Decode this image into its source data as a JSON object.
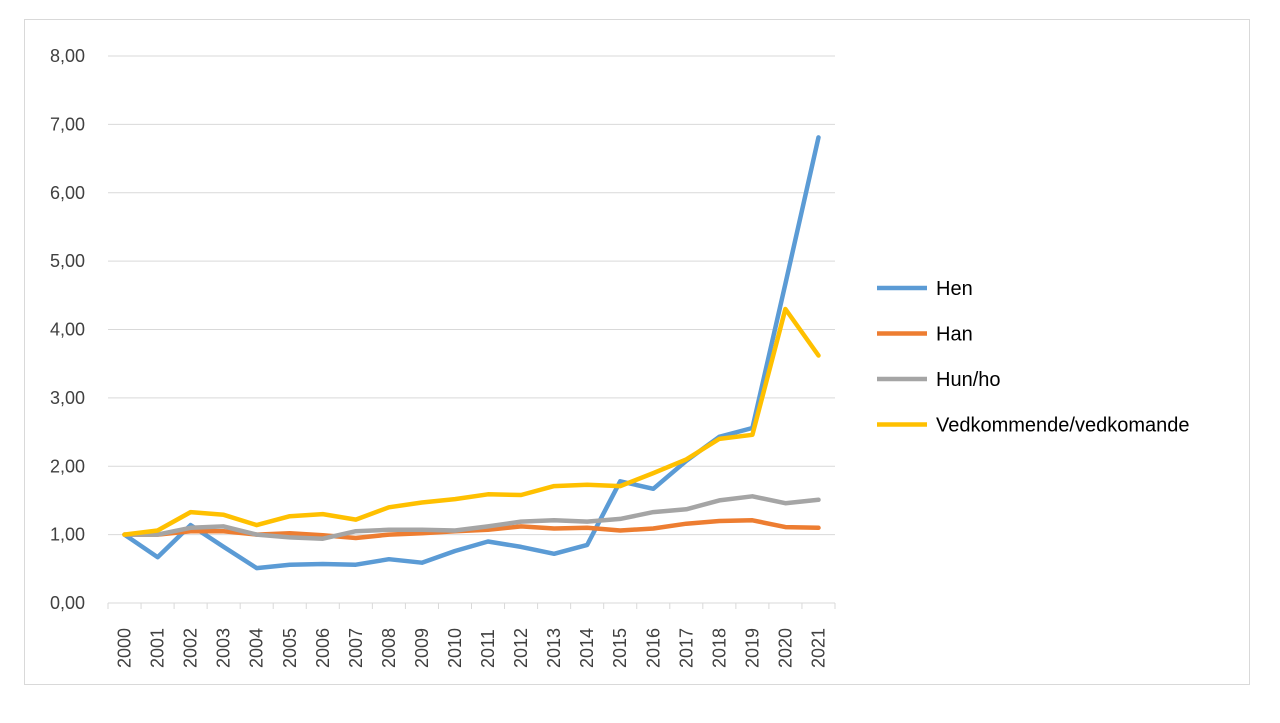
{
  "chart_data": {
    "type": "line",
    "title": "",
    "xlabel": "",
    "ylabel": "",
    "categories": [
      "2000",
      "2001",
      "2002",
      "2003",
      "2004",
      "2005",
      "2006",
      "2007",
      "2008",
      "2009",
      "2010",
      "2011",
      "2012",
      "2013",
      "2014",
      "2015",
      "2016",
      "2017",
      "2018",
      "2019",
      "2020",
      "2021"
    ],
    "y_ticks": [
      "0,00",
      "1,00",
      "2,00",
      "3,00",
      "4,00",
      "5,00",
      "6,00",
      "7,00",
      "8,00"
    ],
    "ylim": [
      0,
      8
    ],
    "grid": true,
    "legend_position": "right",
    "series": [
      {
        "name": "Hen",
        "color": "#5B9BD5",
        "values": [
          1.0,
          0.67,
          1.14,
          0.82,
          0.51,
          0.56,
          0.57,
          0.56,
          0.64,
          0.59,
          0.76,
          0.9,
          0.82,
          0.72,
          0.85,
          1.78,
          1.67,
          2.08,
          2.43,
          2.56,
          4.67,
          6.81
        ]
      },
      {
        "name": "Han",
        "color": "#ED7D31",
        "values": [
          1.0,
          1.0,
          1.05,
          1.05,
          1.0,
          1.02,
          0.99,
          0.95,
          1.0,
          1.02,
          1.05,
          1.07,
          1.12,
          1.09,
          1.1,
          1.06,
          1.09,
          1.16,
          1.2,
          1.21,
          1.11,
          1.1
        ]
      },
      {
        "name": "Hun/ho",
        "color": "#A5A5A5",
        "values": [
          1.0,
          1.0,
          1.1,
          1.12,
          1.0,
          0.96,
          0.94,
          1.05,
          1.07,
          1.07,
          1.06,
          1.12,
          1.19,
          1.21,
          1.19,
          1.23,
          1.33,
          1.37,
          1.5,
          1.56,
          1.46,
          1.51
        ]
      },
      {
        "name": "Vedkommende/vedkomande",
        "color": "#FFC000",
        "values": [
          1.0,
          1.06,
          1.33,
          1.29,
          1.14,
          1.27,
          1.3,
          1.22,
          1.4,
          1.47,
          1.52,
          1.59,
          1.58,
          1.71,
          1.73,
          1.71,
          1.9,
          2.1,
          2.4,
          2.46,
          4.3,
          3.62
        ]
      }
    ]
  }
}
